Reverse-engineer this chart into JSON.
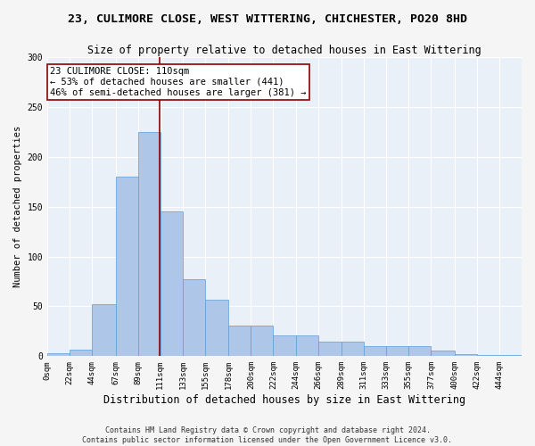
{
  "title": "23, CULIMORE CLOSE, WEST WITTERING, CHICHESTER, PO20 8HD",
  "subtitle": "Size of property relative to detached houses in East Wittering",
  "xlabel": "Distribution of detached houses by size in East Wittering",
  "ylabel": "Number of detached properties",
  "footer_line1": "Contains HM Land Registry data © Crown copyright and database right 2024.",
  "footer_line2": "Contains public sector information licensed under the Open Government Licence v3.0.",
  "bar_values": [
    3,
    7,
    52,
    180,
    225,
    145,
    77,
    57,
    31,
    31,
    21,
    21,
    15,
    15,
    10,
    10,
    10,
    6,
    2,
    1,
    1
  ],
  "bin_edges": [
    0,
    22,
    44,
    67,
    89,
    111,
    133,
    155,
    178,
    200,
    222,
    244,
    266,
    289,
    311,
    333,
    355,
    377,
    400,
    422,
    444,
    466
  ],
  "tick_labels": [
    "0sqm",
    "22sqm",
    "44sqm",
    "67sqm",
    "89sqm",
    "111sqm",
    "133sqm",
    "155sqm",
    "178sqm",
    "200sqm",
    "222sqm",
    "244sqm",
    "266sqm",
    "289sqm",
    "311sqm",
    "333sqm",
    "355sqm",
    "377sqm",
    "400sqm",
    "422sqm",
    "444sqm"
  ],
  "bar_color": "#aec6e8",
  "bar_edge_color": "#5b9bd5",
  "property_size": 110,
  "vline_color": "#8b0000",
  "annotation_box_color": "#8b0000",
  "annotation_line1": "23 CULIMORE CLOSE: 110sqm",
  "annotation_line2": "← 53% of detached houses are smaller (441)",
  "annotation_line3": "46% of semi-detached houses are larger (381) →",
  "ylim": [
    0,
    300
  ],
  "yticks": [
    0,
    50,
    100,
    150,
    200,
    250,
    300
  ],
  "bg_color": "#eaf0f8",
  "grid_color": "#ffffff",
  "fig_bg_color": "#f5f5f5",
  "title_fontsize": 9.5,
  "subtitle_fontsize": 8.5,
  "xlabel_fontsize": 8.5,
  "ylabel_fontsize": 7.5,
  "tick_fontsize": 6.5,
  "annotation_fontsize": 7.5,
  "footer_fontsize": 6
}
